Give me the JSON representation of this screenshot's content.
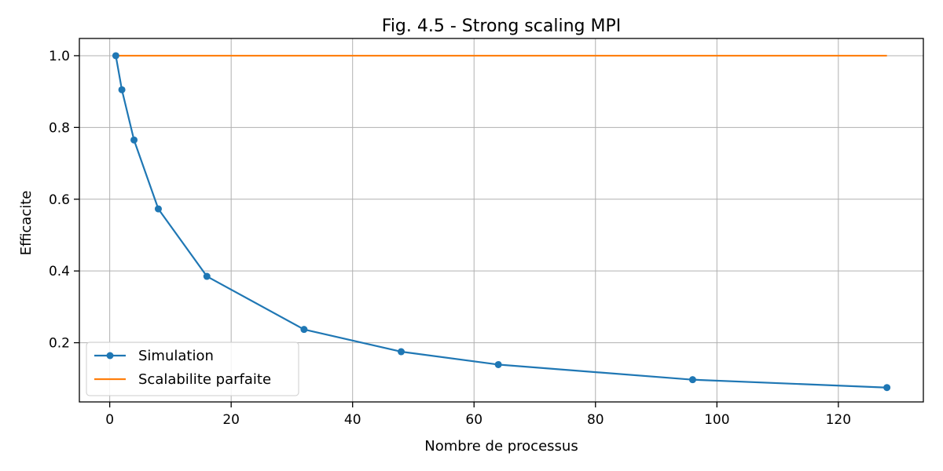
{
  "chart_data": {
    "type": "line",
    "title": "Fig. 4.5 - Strong scaling MPI",
    "xlabel": "Nombre de processus",
    "ylabel": "Efficacite",
    "xlim": [
      -5,
      134
    ],
    "ylim": [
      0.035,
      1.048
    ],
    "xticks": [
      0,
      20,
      40,
      60,
      80,
      100,
      120
    ],
    "yticks": [
      0.2,
      0.4,
      0.6,
      0.8,
      1.0
    ],
    "xtick_labels": [
      "0",
      "20",
      "40",
      "60",
      "80",
      "100",
      "120"
    ],
    "ytick_labels": [
      "0.2",
      "0.4",
      "0.6",
      "0.8",
      "1.0"
    ],
    "grid": true,
    "legend_position": "lower-left",
    "series": [
      {
        "name": "Simulation",
        "color": "#1f77b4",
        "marker": "circle",
        "x": [
          1,
          2,
          4,
          8,
          16,
          32,
          48,
          64,
          96,
          128
        ],
        "y": [
          1.0,
          0.905,
          0.765,
          0.573,
          0.385,
          0.237,
          0.175,
          0.139,
          0.097,
          0.075
        ]
      },
      {
        "name": "Scalabilite parfaite",
        "color": "#ff7f0e",
        "marker": "none",
        "x": [
          1,
          128
        ],
        "y": [
          1.0,
          1.0
        ]
      }
    ]
  }
}
